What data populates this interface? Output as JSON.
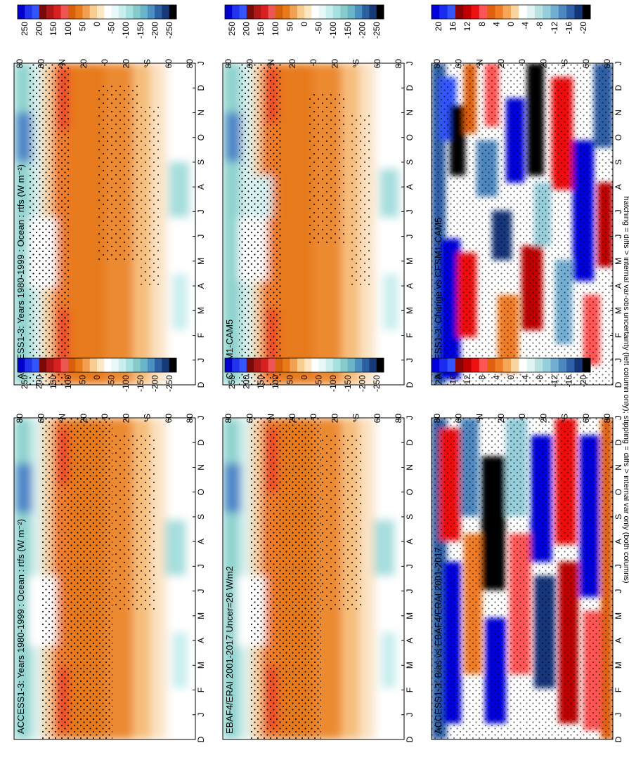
{
  "figure": {
    "footnote": "hatching = diffs > internal var-obs uncertainty (left column only); stippling = diffs > internal var only (both columns)"
  },
  "chart_data": [
    {
      "type": "heatmap",
      "id": "accessR",
      "title": "ACCESS1-3: Years 1980-1999 : Ocean : rtfs (W m⁻²)",
      "x": [
        "D",
        "J",
        "F",
        "M",
        "A",
        "M",
        "J",
        "J",
        "A",
        "S",
        "O",
        "N",
        "D",
        "J"
      ],
      "y": [
        "80",
        "60",
        "°N",
        "20",
        "0",
        "20",
        "°S",
        "60",
        "80"
      ],
      "colorbar": [
        250,
        200,
        150,
        100,
        50,
        0,
        -50,
        -100,
        -150,
        -200,
        -250
      ]
    },
    {
      "type": "heatmap",
      "id": "cesm",
      "title": "CESM1-CAM5",
      "x": [
        "D",
        "J",
        "F",
        "M",
        "A",
        "M",
        "J",
        "J",
        "A",
        "S",
        "O",
        "N",
        "D",
        "J"
      ],
      "y": [
        "80",
        "60",
        "°N",
        "20",
        "0",
        "20",
        "°S",
        "60",
        "80"
      ],
      "colorbar": [
        250,
        200,
        150,
        100,
        50,
        0,
        -50,
        -100,
        -150,
        -200,
        -250
      ]
    },
    {
      "type": "heatmap",
      "id": "change",
      "title": "ACCESS1-3: Change vs CESM1-CAM5",
      "x": [
        "D",
        "J",
        "F",
        "M",
        "A",
        "M",
        "J",
        "J",
        "A",
        "S",
        "O",
        "N",
        "D",
        "J"
      ],
      "y": [
        "80",
        "60",
        "°N",
        "20",
        "0",
        "20",
        "°S",
        "60",
        "80"
      ],
      "colorbar": [
        20,
        16,
        12,
        8,
        4,
        0,
        -4,
        -8,
        -12,
        -16,
        -20
      ]
    },
    {
      "type": "heatmap",
      "id": "accessL",
      "title": "ACCESS1-3: Years 1980-1999 : Ocean : rtfs (W m⁻²)",
      "x": [
        "D",
        "J",
        "F",
        "M",
        "A",
        "M",
        "J",
        "J",
        "A",
        "S",
        "O",
        "N",
        "D",
        "J"
      ],
      "y": [
        "80",
        "60",
        "°N",
        "20",
        "0",
        "20",
        "°S",
        "60",
        "80"
      ],
      "colorbar": [
        250,
        200,
        150,
        100,
        50,
        0,
        -50,
        -100,
        -150,
        -200,
        -250
      ]
    },
    {
      "type": "heatmap",
      "id": "ebaf",
      "title": "EBAF4/ERAI 2001-2017 Uncer=26 W/m2",
      "x": [
        "D",
        "J",
        "F",
        "M",
        "A",
        "M",
        "J",
        "J",
        "A",
        "S",
        "O",
        "N",
        "D",
        "J"
      ],
      "y": [
        "80",
        "60",
        "°N",
        "20",
        "0",
        "20",
        "°S",
        "60",
        "80"
      ],
      "colorbar": [
        250,
        200,
        150,
        100,
        50,
        0,
        -50,
        -100,
        -150,
        -200,
        -250
      ]
    },
    {
      "type": "heatmap",
      "id": "bias",
      "title": "ACCESS1-3: Bias vs EBAF4/ERAI 2001-2017",
      "x": [
        "D",
        "J",
        "F",
        "M",
        "A",
        "M",
        "J",
        "J",
        "A",
        "S",
        "O",
        "N",
        "D",
        "J"
      ],
      "y": [
        "80",
        "60",
        "°N",
        "20",
        "0",
        "20",
        "°S",
        "60",
        "80"
      ],
      "colorbar": [
        20,
        16,
        12,
        8,
        4,
        0,
        -4,
        -8,
        -12,
        -16,
        -20
      ]
    }
  ],
  "colors": {
    "main_scale": [
      "#0000cc",
      "#2233ee",
      "#3355ff",
      "#7a0a0a",
      "#b01818",
      "#d92020",
      "#ee5555",
      "#d9600a",
      "#e87a1c",
      "#f0a050",
      "#f7cc8e",
      "#fde6c2",
      "#ffffff",
      "#e8f7f7",
      "#c9eeee",
      "#a6e0e0",
      "#86caca",
      "#6ab5c9",
      "#4a8fc0",
      "#2b5fa0",
      "#163a78",
      "#000000"
    ],
    "diff_scale": [
      "#0000dd",
      "#1a2cf0",
      "#3355ff",
      "#8b0000",
      "#c00000",
      "#ee1111",
      "#ff5555",
      "#e06010",
      "#f07d26",
      "#f5a657",
      "#fbd5a0",
      "#ffffff",
      "#e0f4f4",
      "#b8e2e2",
      "#96cedc",
      "#73aed2",
      "#4d87c0",
      "#2f5fa6",
      "#17367a",
      "#000000"
    ]
  }
}
